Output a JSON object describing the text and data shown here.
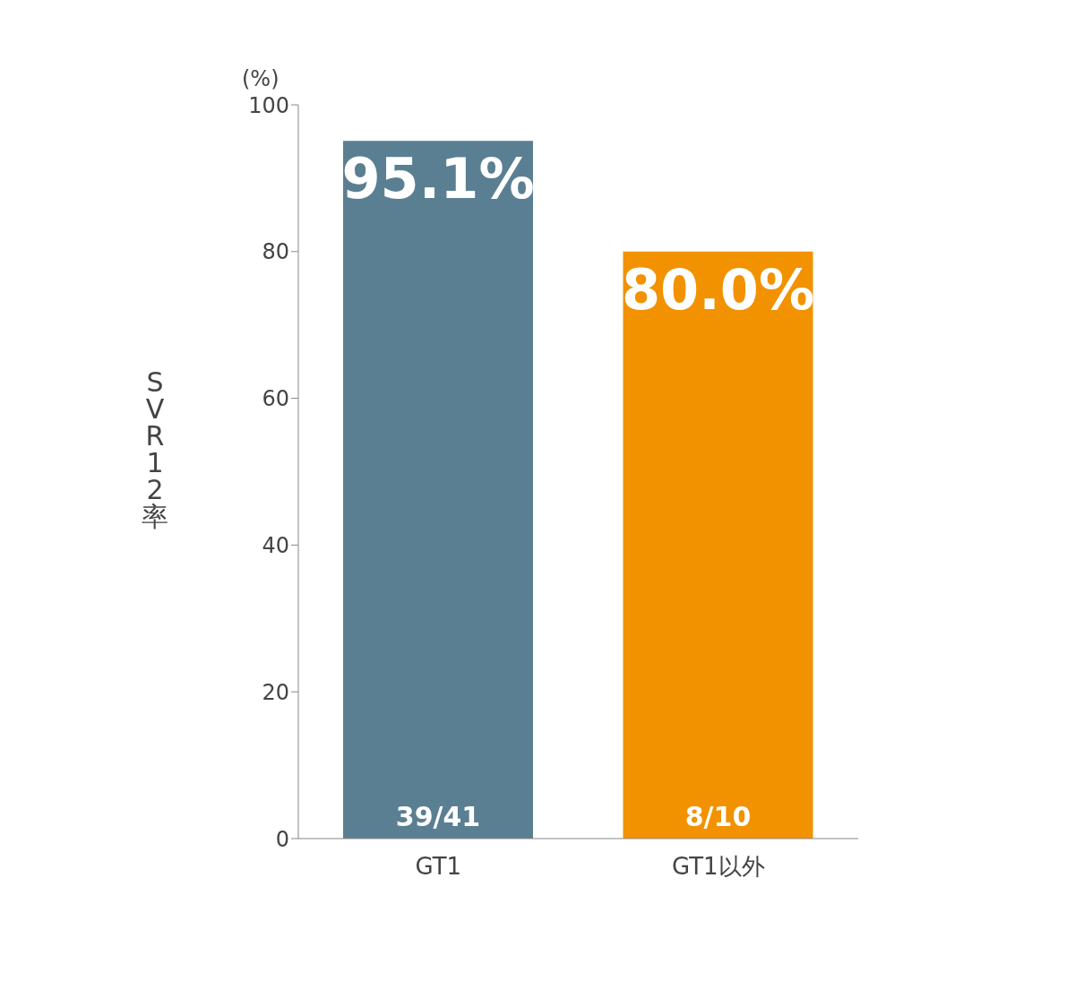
{
  "chart_data": {
    "type": "bar",
    "ylabel": "SVR12率",
    "categories": [
      "GT1",
      "GT1以外"
    ],
    "values": [
      95.1,
      80.0
    ],
    "colors": [
      "#5b7f92",
      "#f29200"
    ],
    "value_labels": [
      "95.1%",
      "80.0%"
    ],
    "annotations": [
      "(%)",
      {
        "text": "39/41",
        "x": "GT1",
        "y": 0
      },
      {
        "text": "8/10",
        "x": "GT1以外",
        "y": 0
      }
    ],
    "ylim": [
      0,
      100
    ],
    "yticks": [
      0,
      20,
      40,
      60,
      80,
      100
    ],
    "grid": false
  }
}
